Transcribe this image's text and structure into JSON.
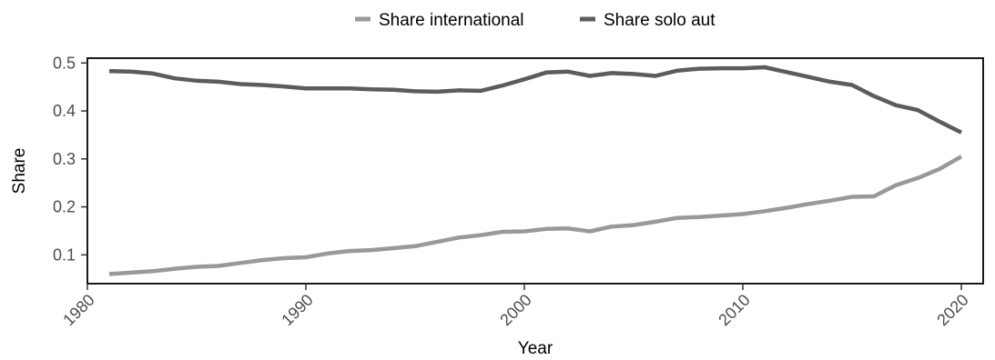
{
  "chart_data": {
    "type": "line",
    "xlabel": "Year",
    "ylabel": "Share",
    "xlim": [
      1980,
      2021
    ],
    "ylim": [
      0.04,
      0.51
    ],
    "xticks": [
      "1980",
      "1990",
      "2000",
      "2010",
      "2020"
    ],
    "yticks": [
      "0.1",
      "0.2",
      "0.3",
      "0.4",
      "0.5"
    ],
    "grid": false,
    "legend_position": "top-center",
    "x": [
      1981,
      1982,
      1983,
      1984,
      1985,
      1986,
      1987,
      1988,
      1989,
      1990,
      1991,
      1992,
      1993,
      1994,
      1995,
      1996,
      1997,
      1998,
      1999,
      2000,
      2001,
      2002,
      2003,
      2004,
      2005,
      2006,
      2007,
      2008,
      2009,
      2010,
      2011,
      2012,
      2013,
      2014,
      2015,
      2016,
      2017,
      2018,
      2019,
      2020
    ],
    "series": [
      {
        "name": "Share international",
        "color": "#999999",
        "values": [
          0.06,
          0.063,
          0.066,
          0.071,
          0.075,
          0.077,
          0.083,
          0.089,
          0.093,
          0.095,
          0.103,
          0.108,
          0.11,
          0.114,
          0.118,
          0.127,
          0.136,
          0.141,
          0.148,
          0.149,
          0.154,
          0.155,
          0.149,
          0.159,
          0.162,
          0.169,
          0.177,
          0.179,
          0.182,
          0.185,
          0.191,
          0.198,
          0.206,
          0.213,
          0.221,
          0.222,
          0.245,
          0.26,
          0.279,
          0.305
        ]
      },
      {
        "name": "Share solo aut",
        "color": "#5c5c5c",
        "values": [
          0.483,
          0.482,
          0.478,
          0.468,
          0.463,
          0.461,
          0.456,
          0.454,
          0.451,
          0.447,
          0.447,
          0.447,
          0.445,
          0.444,
          0.441,
          0.44,
          0.443,
          0.442,
          0.453,
          0.466,
          0.48,
          0.482,
          0.473,
          0.479,
          0.477,
          0.473,
          0.484,
          0.488,
          0.489,
          0.489,
          0.491,
          0.481,
          0.471,
          0.461,
          0.454,
          0.431,
          0.412,
          0.402,
          0.378,
          0.355
        ]
      }
    ]
  }
}
